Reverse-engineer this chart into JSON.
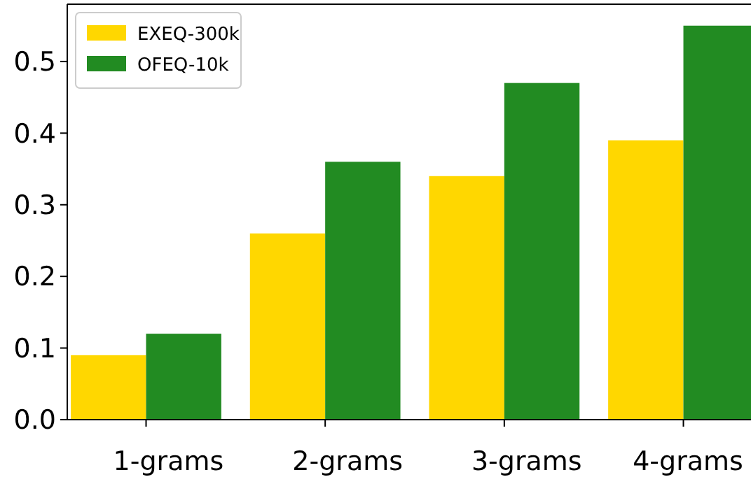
{
  "chart_data": {
    "type": "bar",
    "categories": [
      "1-grams",
      "2-grams",
      "3-grams",
      "4-grams"
    ],
    "series": [
      {
        "name": "EXEQ-300k",
        "color": "#ffd700",
        "values": [
          0.09,
          0.26,
          0.34,
          0.39
        ]
      },
      {
        "name": "OFEQ-10k",
        "color": "#228b22",
        "values": [
          0.12,
          0.36,
          0.47,
          0.55
        ]
      }
    ],
    "ylim": [
      0,
      0.58
    ],
    "yticks": [
      {
        "value": 0,
        "label": "0.0"
      },
      0.1,
      0.2,
      0.3,
      0.4,
      0.5
    ],
    "legend": "top left",
    "grid": false
  }
}
